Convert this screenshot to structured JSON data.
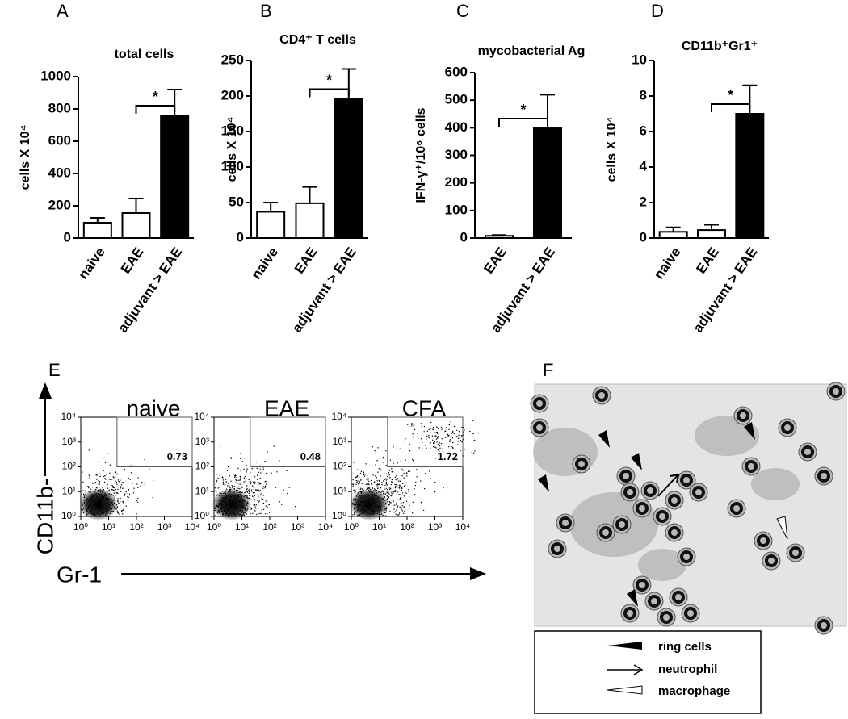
{
  "chart_data": [
    {
      "type": "bar",
      "panel": "A",
      "title": "total cells",
      "ylabel": "cells X 10⁴",
      "categories": [
        "naive",
        "EAE",
        "adjuvant > EAE"
      ],
      "values": [
        95,
        155,
        760
      ],
      "errors": [
        30,
        90,
        160
      ],
      "colors": [
        "#ffffff",
        "#ffffff",
        "#000000"
      ],
      "ylim": [
        0,
        1000
      ],
      "yticks": [
        0,
        200,
        400,
        600,
        800,
        1000
      ],
      "significance": "*"
    },
    {
      "type": "bar",
      "panel": "B",
      "title": "CD4⁺ T cells",
      "ylabel": "cells X 10⁴",
      "categories": [
        "naive",
        "EAE",
        "adjuvant > EAE"
      ],
      "values": [
        37,
        49,
        196
      ],
      "errors": [
        13,
        23,
        42
      ],
      "colors": [
        "#ffffff",
        "#ffffff",
        "#000000"
      ],
      "ylim": [
        0,
        250
      ],
      "yticks": [
        0,
        50,
        100,
        150,
        200,
        250
      ],
      "significance": "*"
    },
    {
      "type": "bar",
      "panel": "C",
      "title": "mycobacterial Ag",
      "ylabel": "IFN-γ⁺/10⁶ cells",
      "categories": [
        "EAE",
        "adjuvant > EAE"
      ],
      "values": [
        8,
        398
      ],
      "errors": [
        3,
        122
      ],
      "colors": [
        "#ffffff",
        "#000000"
      ],
      "ylim": [
        0,
        600
      ],
      "yticks": [
        0,
        100,
        200,
        300,
        400,
        500,
        600
      ],
      "significance": "*"
    },
    {
      "type": "bar",
      "panel": "D",
      "title": "CD11b⁺Gr1⁺",
      "ylabel": "cells X 10⁴",
      "categories": [
        "naive",
        "EAE",
        "adjuvant > EAE"
      ],
      "values": [
        0.35,
        0.45,
        7.0
      ],
      "errors": [
        0.25,
        0.3,
        1.6
      ],
      "colors": [
        "#ffffff",
        "#ffffff",
        "#000000"
      ],
      "ylim": [
        0,
        10
      ],
      "yticks": [
        0,
        2,
        4,
        6,
        8,
        10
      ],
      "significance": "*"
    }
  ],
  "flow": {
    "panel": "E",
    "xlabel": "Gr-1",
    "ylabel": "CD11b-",
    "log_scale": true,
    "xlim": [
      1,
      10000
    ],
    "ylim": [
      1,
      10000
    ],
    "ticks": [
      {
        "value": 1,
        "label": "10⁰"
      },
      {
        "value": 10,
        "label": "10¹"
      },
      {
        "value": 100,
        "label": "10²"
      },
      {
        "value": 1000,
        "label": "10³"
      },
      {
        "value": 10000,
        "label": "10⁴"
      }
    ],
    "plots": [
      {
        "title": "naive",
        "gate": 0.73
      },
      {
        "title": "EAE",
        "gate": 0.48
      },
      {
        "title": "CFA",
        "gate": 1.72
      }
    ]
  },
  "micrograph": {
    "panel": "F",
    "legend": [
      "ring cells",
      "neutrophil",
      "macrophage"
    ]
  }
}
